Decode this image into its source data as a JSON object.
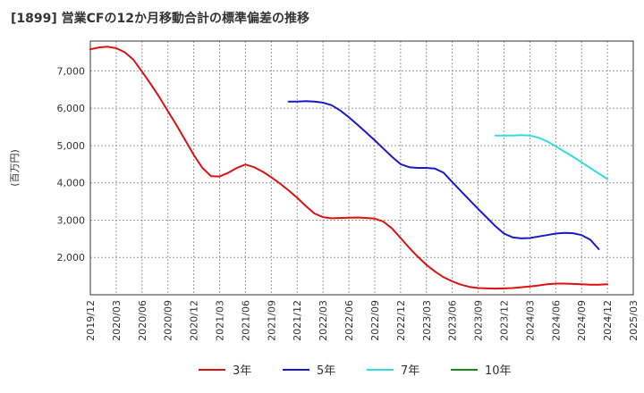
{
  "chart_data": {
    "type": "line",
    "title": "[1899]  営業CFの12か月移動合計の標準偏差の推移",
    "ylabel": "(百万円)",
    "xlabel": "",
    "ylim": [
      1000,
      7800
    ],
    "yticks": [
      2000,
      3000,
      4000,
      5000,
      6000,
      7000
    ],
    "ytick_labels": [
      "2,000",
      "3,000",
      "4,000",
      "5,000",
      "6,000",
      "7,000"
    ],
    "xlim": [
      "2019-12",
      "2025-03"
    ],
    "xtick_labels": [
      "2019/12",
      "2020/03",
      "2020/06",
      "2020/09",
      "2020/12",
      "2021/03",
      "2021/06",
      "2021/09",
      "2021/12",
      "2022/03",
      "2022/06",
      "2022/09",
      "2022/12",
      "2023/03",
      "2023/06",
      "2023/09",
      "2023/12",
      "2024/03",
      "2024/06",
      "2024/09",
      "2024/12",
      "2025/03"
    ],
    "grid": true,
    "legend_position": "bottom",
    "series": [
      {
        "name": "3年",
        "color": "#dd1111",
        "points": [
          [
            "2019-12",
            7580
          ],
          [
            "2020-01",
            7630
          ],
          [
            "2020-02",
            7650
          ],
          [
            "2020-03",
            7610
          ],
          [
            "2020-04",
            7500
          ],
          [
            "2020-05",
            7300
          ],
          [
            "2020-06",
            6980
          ],
          [
            "2020-07",
            6650
          ],
          [
            "2020-08",
            6300
          ],
          [
            "2020-09",
            5920
          ],
          [
            "2020-10",
            5550
          ],
          [
            "2020-11",
            5150
          ],
          [
            "2020-12",
            4750
          ],
          [
            "2021-01",
            4400
          ],
          [
            "2021-02",
            4180
          ],
          [
            "2021-03",
            4170
          ],
          [
            "2021-04",
            4270
          ],
          [
            "2021-05",
            4400
          ],
          [
            "2021-06",
            4490
          ],
          [
            "2021-07",
            4420
          ],
          [
            "2021-08",
            4300
          ],
          [
            "2021-09",
            4150
          ],
          [
            "2021-10",
            3980
          ],
          [
            "2021-11",
            3800
          ],
          [
            "2021-12",
            3600
          ],
          [
            "2022-01",
            3380
          ],
          [
            "2022-02",
            3180
          ],
          [
            "2022-03",
            3080
          ],
          [
            "2022-04",
            3050
          ],
          [
            "2022-05",
            3060
          ],
          [
            "2022-06",
            3065
          ],
          [
            "2022-07",
            3070
          ],
          [
            "2022-08",
            3060
          ],
          [
            "2022-09",
            3040
          ],
          [
            "2022-10",
            2960
          ],
          [
            "2022-11",
            2780
          ],
          [
            "2022-12",
            2520
          ],
          [
            "2023-01",
            2260
          ],
          [
            "2023-02",
            2020
          ],
          [
            "2023-03",
            1800
          ],
          [
            "2023-04",
            1620
          ],
          [
            "2023-05",
            1470
          ],
          [
            "2023-06",
            1360
          ],
          [
            "2023-07",
            1270
          ],
          [
            "2023-08",
            1210
          ],
          [
            "2023-09",
            1180
          ],
          [
            "2023-10",
            1170
          ],
          [
            "2023-11",
            1165
          ],
          [
            "2023-12",
            1170
          ],
          [
            "2024-01",
            1180
          ],
          [
            "2024-02",
            1200
          ],
          [
            "2024-03",
            1220
          ],
          [
            "2024-04",
            1250
          ],
          [
            "2024-05",
            1280
          ],
          [
            "2024-06",
            1300
          ],
          [
            "2024-07",
            1300
          ],
          [
            "2024-08",
            1290
          ],
          [
            "2024-09",
            1280
          ],
          [
            "2024-10",
            1270
          ],
          [
            "2024-11",
            1270
          ],
          [
            "2024-12",
            1280
          ]
        ]
      },
      {
        "name": "5年",
        "color": "#1a1acc",
        "points": [
          [
            "2021-11",
            6180
          ],
          [
            "2021-12",
            6180
          ],
          [
            "2022-01",
            6190
          ],
          [
            "2022-02",
            6180
          ],
          [
            "2022-03",
            6150
          ],
          [
            "2022-04",
            6080
          ],
          [
            "2022-05",
            5940
          ],
          [
            "2022-06",
            5760
          ],
          [
            "2022-07",
            5560
          ],
          [
            "2022-08",
            5350
          ],
          [
            "2022-09",
            5140
          ],
          [
            "2022-10",
            4920
          ],
          [
            "2022-11",
            4700
          ],
          [
            "2022-12",
            4500
          ],
          [
            "2023-01",
            4420
          ],
          [
            "2023-02",
            4400
          ],
          [
            "2023-03",
            4400
          ],
          [
            "2023-04",
            4380
          ],
          [
            "2023-05",
            4270
          ],
          [
            "2023-06",
            4020
          ],
          [
            "2023-07",
            3780
          ],
          [
            "2023-08",
            3540
          ],
          [
            "2023-09",
            3300
          ],
          [
            "2023-10",
            3070
          ],
          [
            "2023-11",
            2840
          ],
          [
            "2023-12",
            2640
          ],
          [
            "2024-01",
            2540
          ],
          [
            "2024-02",
            2510
          ],
          [
            "2024-03",
            2520
          ],
          [
            "2024-04",
            2560
          ],
          [
            "2024-05",
            2600
          ],
          [
            "2024-06",
            2640
          ],
          [
            "2024-07",
            2660
          ],
          [
            "2024-08",
            2650
          ],
          [
            "2024-09",
            2600
          ],
          [
            "2024-10",
            2480
          ],
          [
            "2024-11",
            2220
          ]
        ]
      },
      {
        "name": "7年",
        "color": "#33dddd",
        "points": [
          [
            "2023-11",
            5270
          ],
          [
            "2023-12",
            5270
          ],
          [
            "2024-01",
            5270
          ],
          [
            "2024-02",
            5280
          ],
          [
            "2024-03",
            5270
          ],
          [
            "2024-04",
            5210
          ],
          [
            "2024-05",
            5110
          ],
          [
            "2024-06",
            4980
          ],
          [
            "2024-07",
            4840
          ],
          [
            "2024-08",
            4700
          ],
          [
            "2024-09",
            4550
          ],
          [
            "2024-10",
            4400
          ],
          [
            "2024-11",
            4250
          ],
          [
            "2024-12",
            4100
          ]
        ]
      },
      {
        "name": "10年",
        "color": "#1a8a1a",
        "points": []
      }
    ]
  }
}
